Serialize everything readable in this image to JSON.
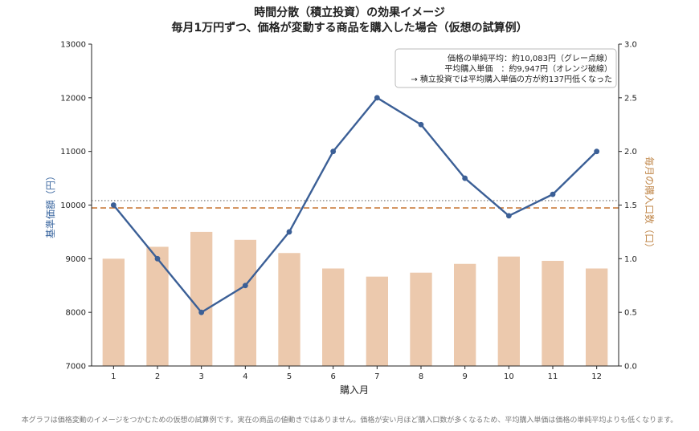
{
  "chart_data": {
    "type": "bar+line",
    "title": "時間分散（積立投資）の効果イメージ",
    "subtitle": "毎月1万円ずつ、価格が変動する商品を購入した場合（仮想の試算例）",
    "xlabel": "購入月",
    "ylabel_left": "基準価額（円）",
    "ylabel_right": "毎月の購入口数（口）",
    "categories": [
      1,
      2,
      3,
      4,
      5,
      6,
      7,
      8,
      9,
      10,
      11,
      12
    ],
    "price": [
      10000,
      9000,
      8000,
      8500,
      9500,
      11000,
      12000,
      11500,
      10500,
      9800,
      10200,
      11000
    ],
    "units": [
      1.0,
      1.111,
      1.25,
      1.176,
      1.053,
      0.909,
      0.833,
      0.87,
      0.952,
      1.02,
      0.98,
      0.909
    ],
    "ylim_left": [
      7000,
      13000
    ],
    "ylim_right": [
      0.0,
      3.0
    ],
    "yticks_left": [
      7000,
      8000,
      9000,
      10000,
      11000,
      12000,
      13000
    ],
    "yticks_right": [
      "0.0",
      "0.5",
      "1.0",
      "1.5",
      "2.0",
      "2.5",
      "3.0"
    ],
    "simple_average": 10083,
    "avg_purchase_price": 9947,
    "annotation": [
      "価格の単純平均：約10,083円（グレー点線）",
      "平均購入単価　：約9,947円（オレンジ破線）",
      "→ 積立投資では平均購入単価の方が約137円低くなった"
    ],
    "colors": {
      "line": "#3b5f96",
      "bar": "#ecc9ad",
      "avg_dashed": "#c97a3a",
      "simple_dotted": "#888888",
      "left_label": "#3b67a0",
      "right_label": "#c0874a"
    },
    "grid": false
  },
  "footnote": "本グラフは価格変動のイメージをつかむための仮想の試算例です。実在の商品の値動きではありません。価格が安い月ほど購入口数が多くなるため、平均購入単価は価格の単純平均よりも低くなります。"
}
